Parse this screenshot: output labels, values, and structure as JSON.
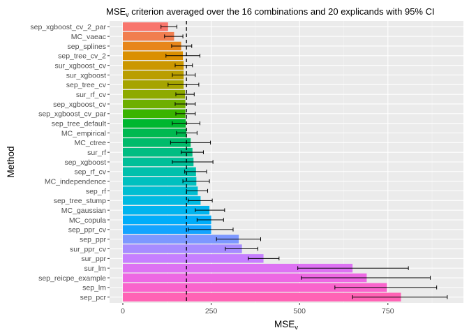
{
  "chart_data": {
    "type": "bar",
    "orientation": "horizontal",
    "title_main": "MSE",
    "title_sub": "v",
    "title_rest": " criterion averaged over the 16 combinations and 20 explicands with 95% CI",
    "xlabel_main": "MSE",
    "xlabel_sub": "v",
    "ylabel": "Method",
    "xlim": [
      -20,
      930
    ],
    "xticks": [
      0,
      250,
      500,
      750
    ],
    "grid": true,
    "reference_line": 180,
    "categories": [
      "sep_xgboost_cv_2_par",
      "MC_vaeac",
      "sep_splines",
      "sep_tree_cv_2",
      "sur_xgboost_cv",
      "sur_xgboost",
      "sep_tree_cv",
      "sur_rf_cv",
      "sep_xgboost_cv",
      "sep_xgboost_cv_par",
      "sep_tree_default",
      "MC_empirical",
      "MC_ctree",
      "sur_rf",
      "sep_xgboost",
      "sep_rf_cv",
      "MC_independence",
      "sep_rf",
      "sep_tree_stump",
      "MC_gaussian",
      "MC_copula",
      "sep_ppr_cv",
      "sep_ppr",
      "sur_ppr_cv",
      "sur_ppr",
      "sur_lm",
      "sep_reicpe_example",
      "sep_lm",
      "sep_pcr"
    ],
    "values": [
      128,
      145,
      165,
      170,
      172,
      172,
      172,
      176,
      177,
      177,
      178,
      180,
      192,
      197,
      200,
      207,
      208,
      212,
      220,
      245,
      250,
      250,
      328,
      337,
      398,
      650,
      690,
      747,
      787
    ],
    "ci_low": [
      108,
      118,
      138,
      122,
      148,
      140,
      128,
      150,
      148,
      150,
      140,
      152,
      135,
      165,
      140,
      175,
      170,
      180,
      185,
      205,
      210,
      185,
      265,
      290,
      355,
      495,
      505,
      600,
      650
    ],
    "ci_high": [
      153,
      170,
      195,
      218,
      197,
      205,
      215,
      202,
      205,
      205,
      218,
      210,
      248,
      228,
      255,
      237,
      245,
      240,
      253,
      288,
      285,
      312,
      390,
      382,
      442,
      808,
      870,
      888,
      918
    ],
    "colors": [
      "#F8766D",
      "#F17E4F",
      "#E7861B",
      "#DA8F00",
      "#CB9700",
      "#BA9E00",
      "#A6A400",
      "#8EAA00",
      "#6EAF00",
      "#3AB400",
      "#00B730",
      "#00B950",
      "#00BB6B",
      "#00BD82",
      "#00BF98",
      "#00C0AC",
      "#00C0BF",
      "#00BED1",
      "#00BAE1",
      "#00B4EF",
      "#00ADFA",
      "#13A4FF",
      "#7D98FF",
      "#A78CFF",
      "#C67FFF",
      "#DD72F3",
      "#ED68E3",
      "#F964CC",
      "#FF63B5"
    ]
  }
}
